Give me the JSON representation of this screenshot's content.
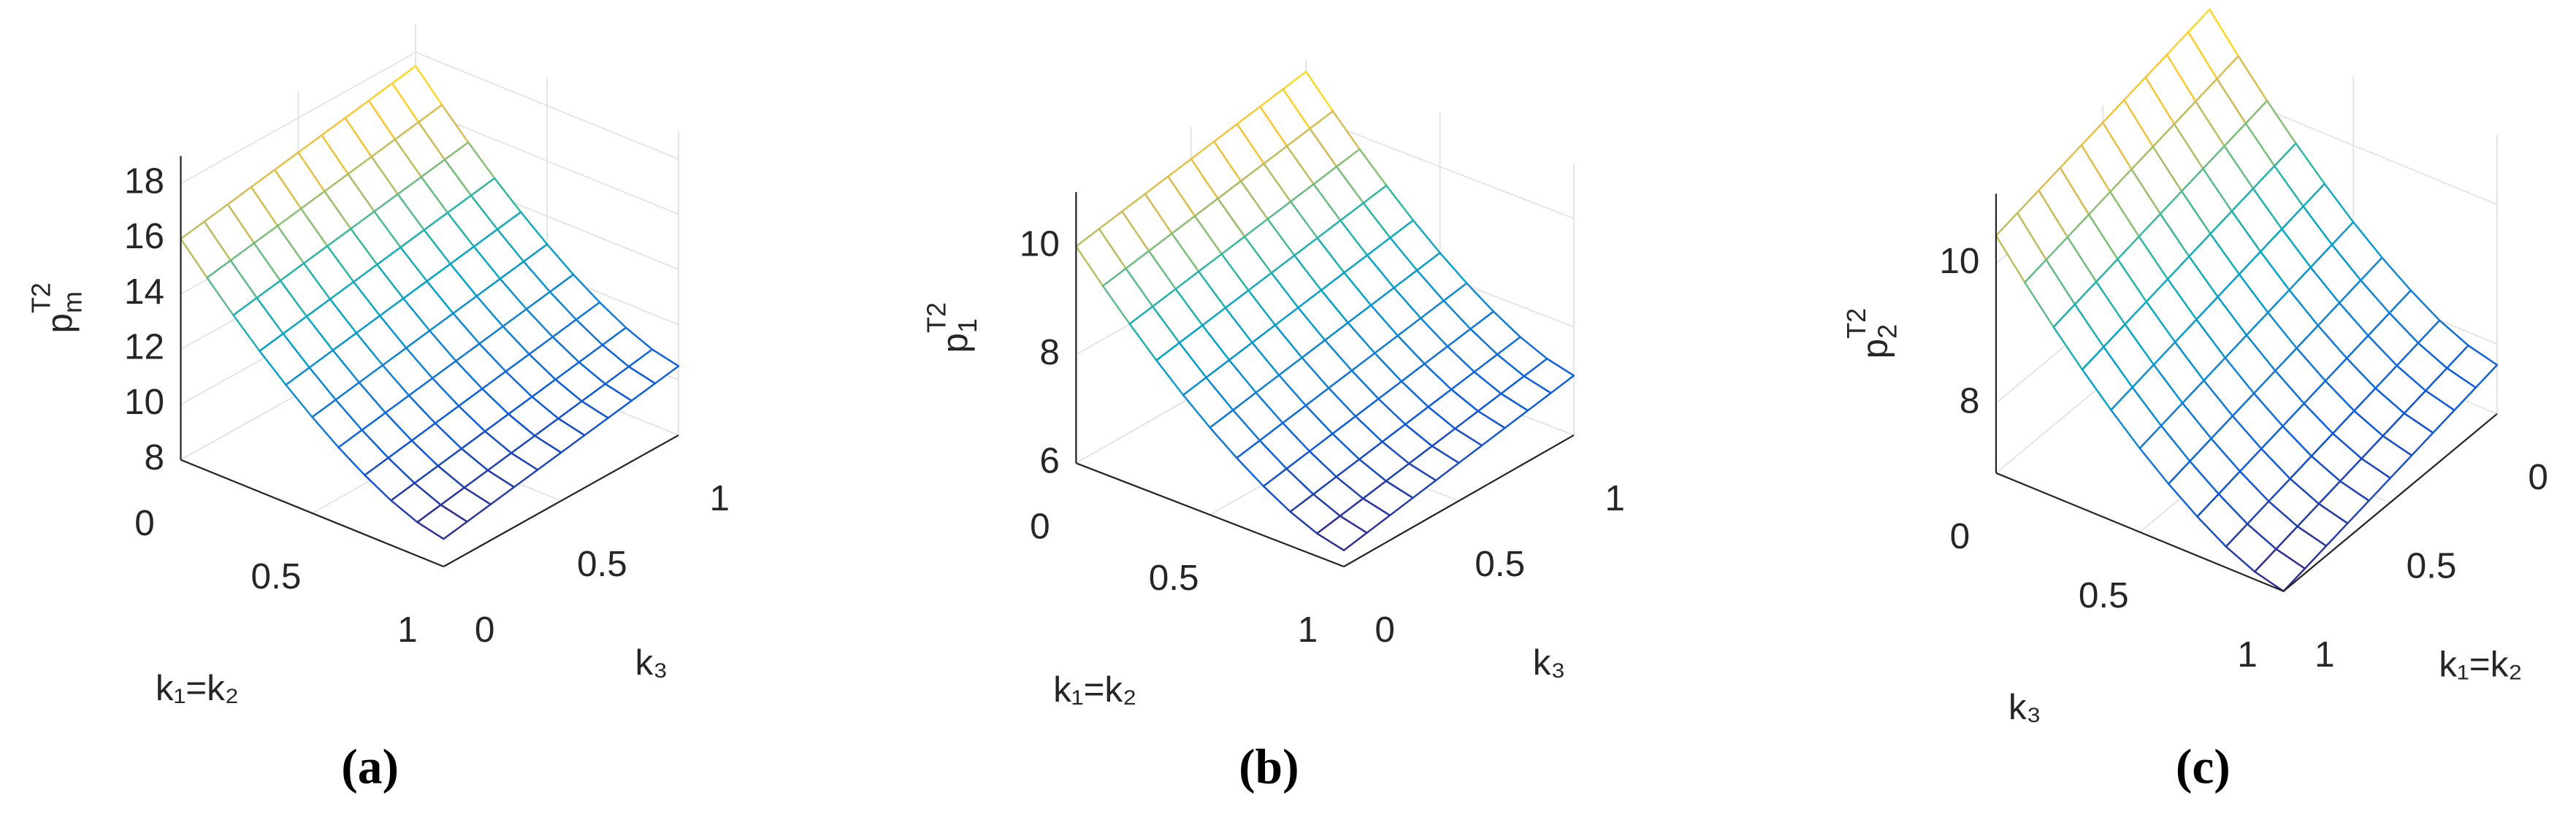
{
  "chart_data": [
    {
      "type": "surface",
      "caption": "(a)",
      "x_label": "k₁=k₂",
      "y_label": "k₃",
      "z_label": {
        "base": "p",
        "sub": "m",
        "sup": "T2"
      },
      "colormap": "parula",
      "grid": true,
      "yreverse": false,
      "xlim": [
        0,
        1
      ],
      "ylim": [
        0,
        1
      ],
      "zlim": [
        8,
        19
      ],
      "xticks": [
        0,
        0.5,
        1
      ],
      "yticks": [
        0,
        0.5,
        1
      ],
      "zticks": [
        8,
        10,
        12,
        14,
        16,
        18
      ],
      "x": [
        0,
        0.1,
        0.2,
        0.3,
        0.4,
        0.5,
        0.6,
        0.7,
        0.8,
        0.9,
        1
      ],
      "y": [
        0,
        0.1,
        0.2,
        0.3,
        0.4,
        0.5,
        0.6,
        0.7,
        0.8,
        0.9,
        1
      ],
      "z": [
        [
          16,
          16.15,
          16.3,
          16.45,
          16.6,
          16.75,
          16.9,
          17.05,
          17.2,
          17.35,
          17.5
        ],
        [
          14.98,
          15.13,
          15.28,
          15.43,
          15.58,
          15.73,
          15.88,
          16.03,
          16.18,
          16.33,
          16.48
        ],
        [
          14.01,
          14.16,
          14.31,
          14.46,
          14.61,
          14.76,
          14.91,
          15.06,
          15.21,
          15.36,
          15.51
        ],
        [
          13.1,
          13.25,
          13.4,
          13.55,
          13.7,
          13.85,
          14,
          14.15,
          14.3,
          14.45,
          14.6
        ],
        [
          12.26,
          12.41,
          12.56,
          12.71,
          12.86,
          13.01,
          13.16,
          13.31,
          13.46,
          13.61,
          13.76
        ],
        [
          11.48,
          11.63,
          11.78,
          11.93,
          12.08,
          12.23,
          12.38,
          12.53,
          12.68,
          12.83,
          12.98
        ],
        [
          10.77,
          10.92,
          11.07,
          11.22,
          11.37,
          11.52,
          11.67,
          11.82,
          11.97,
          12.12,
          12.27
        ],
        [
          10.15,
          10.3,
          10.45,
          10.6,
          10.75,
          10.9,
          11.05,
          11.2,
          11.35,
          11.5,
          11.65
        ],
        [
          9.62,
          9.77,
          9.92,
          10.07,
          10.22,
          10.37,
          10.52,
          10.67,
          10.82,
          10.97,
          11.12
        ],
        [
          9.22,
          9.37,
          9.52,
          9.67,
          9.82,
          9.97,
          10.12,
          10.27,
          10.42,
          10.57,
          10.72
        ],
        [
          9,
          9.15,
          9.3,
          9.45,
          9.6,
          9.75,
          9.9,
          10.05,
          10.2,
          10.35,
          10.5
        ]
      ]
    },
    {
      "type": "surface",
      "caption": "(b)",
      "x_label": "k₁=k₂",
      "y_label": "k₃",
      "z_label": {
        "base": "p",
        "sub": "1",
        "sup": "T2"
      },
      "colormap": "parula",
      "grid": true,
      "yreverse": false,
      "xlim": [
        0,
        1
      ],
      "ylim": [
        0,
        1
      ],
      "zlim": [
        6,
        11
      ],
      "xticks": [
        0,
        0.5,
        1
      ],
      "yticks": [
        0,
        0.5,
        1
      ],
      "zticks": [
        6,
        8,
        10
      ],
      "x": [
        0,
        0.1,
        0.2,
        0.3,
        0.4,
        0.5,
        0.6,
        0.7,
        0.8,
        0.9,
        1
      ],
      "y": [
        0,
        0.1,
        0.2,
        0.3,
        0.4,
        0.5,
        0.6,
        0.7,
        0.8,
        0.9,
        1
      ],
      "z": [
        [
          10,
          10.08,
          10.16,
          10.24,
          10.32,
          10.4,
          10.48,
          10.56,
          10.64,
          10.72,
          10.8
        ],
        [
          9.46,
          9.54,
          9.62,
          9.7,
          9.78,
          9.86,
          9.94,
          10.02,
          10.1,
          10.18,
          10.26
        ],
        [
          8.95,
          9.03,
          9.11,
          9.19,
          9.27,
          9.35,
          9.43,
          9.51,
          9.59,
          9.67,
          9.75
        ],
        [
          8.47,
          8.55,
          8.63,
          8.71,
          8.79,
          8.87,
          8.95,
          9.03,
          9.11,
          9.19,
          9.27
        ],
        [
          8.02,
          8.1,
          8.18,
          8.26,
          8.34,
          8.42,
          8.5,
          8.58,
          8.66,
          8.74,
          8.82
        ],
        [
          7.61,
          7.69,
          7.77,
          7.85,
          7.93,
          8.01,
          8.09,
          8.17,
          8.25,
          8.33,
          8.41
        ],
        [
          7.24,
          7.32,
          7.4,
          7.48,
          7.56,
          7.64,
          7.72,
          7.8,
          7.88,
          7.96,
          8.04
        ],
        [
          6.91,
          6.99,
          7.07,
          7.15,
          7.23,
          7.31,
          7.39,
          7.47,
          7.55,
          7.63,
          7.71
        ],
        [
          6.63,
          6.71,
          6.79,
          6.87,
          6.95,
          7.03,
          7.11,
          7.19,
          7.27,
          7.35,
          7.43
        ],
        [
          6.42,
          6.5,
          6.58,
          6.66,
          6.74,
          6.82,
          6.9,
          6.98,
          7.06,
          7.14,
          7.22
        ],
        [
          6.3,
          6.38,
          6.46,
          6.54,
          6.62,
          6.7,
          6.78,
          6.86,
          6.94,
          7.02,
          7.1
        ]
      ]
    },
    {
      "type": "surface",
      "caption": "(c)",
      "x_label": "k₃",
      "y_label": "k₁=k₂",
      "z_label": {
        "base": "p",
        "sub": "2",
        "sup": "T2"
      },
      "colormap": "parula",
      "grid": true,
      "yreverse": true,
      "xlim": [
        0,
        1
      ],
      "ylim": [
        0,
        1
      ],
      "zlim": [
        7,
        11
      ],
      "xticks": [
        0,
        0.5,
        1
      ],
      "yticks": [
        0,
        0.5,
        1
      ],
      "zticks": [
        8,
        10
      ],
      "x": [
        0,
        0.1,
        0.2,
        0.3,
        0.4,
        0.5,
        0.6,
        0.7,
        0.8,
        0.9,
        1
      ],
      "y": [
        0,
        0.1,
        0.2,
        0.3,
        0.4,
        0.5,
        0.6,
        0.7,
        0.8,
        0.9,
        1
      ],
      "z": [
        [
          11.1,
          11.03,
          10.96,
          10.89,
          10.82,
          10.75,
          10.68,
          10.61,
          10.54,
          10.47,
          10.4
        ],
        [
          10.6,
          10.53,
          10.46,
          10.39,
          10.32,
          10.25,
          10.18,
          10.11,
          10.04,
          9.97,
          9.9
        ],
        [
          10.13,
          10.06,
          9.99,
          9.92,
          9.85,
          9.78,
          9.71,
          9.64,
          9.57,
          9.5,
          9.43
        ],
        [
          9.69,
          9.62,
          9.55,
          9.48,
          9.41,
          9.34,
          9.27,
          9.2,
          9.13,
          9.06,
          8.99
        ],
        [
          9.28,
          9.21,
          9.14,
          9.07,
          9,
          8.93,
          8.86,
          8.79,
          8.72,
          8.65,
          8.58
        ],
        [
          8.9,
          8.83,
          8.76,
          8.69,
          8.62,
          8.55,
          8.48,
          8.41,
          8.34,
          8.27,
          8.2
        ],
        [
          8.56,
          8.49,
          8.42,
          8.35,
          8.28,
          8.21,
          8.14,
          8.07,
          8,
          7.93,
          7.86
        ],
        [
          8.26,
          8.19,
          8.12,
          8.05,
          7.98,
          7.91,
          7.84,
          7.77,
          7.7,
          7.63,
          7.56
        ],
        [
          8,
          7.93,
          7.86,
          7.79,
          7.72,
          7.65,
          7.58,
          7.51,
          7.44,
          7.37,
          7.3
        ],
        [
          7.81,
          7.74,
          7.67,
          7.6,
          7.53,
          7.46,
          7.39,
          7.32,
          7.25,
          7.18,
          7.11
        ],
        [
          7.7,
          7.63,
          7.56,
          7.49,
          7.42,
          7.35,
          7.28,
          7.21,
          7.14,
          7.07,
          7
        ]
      ]
    }
  ]
}
